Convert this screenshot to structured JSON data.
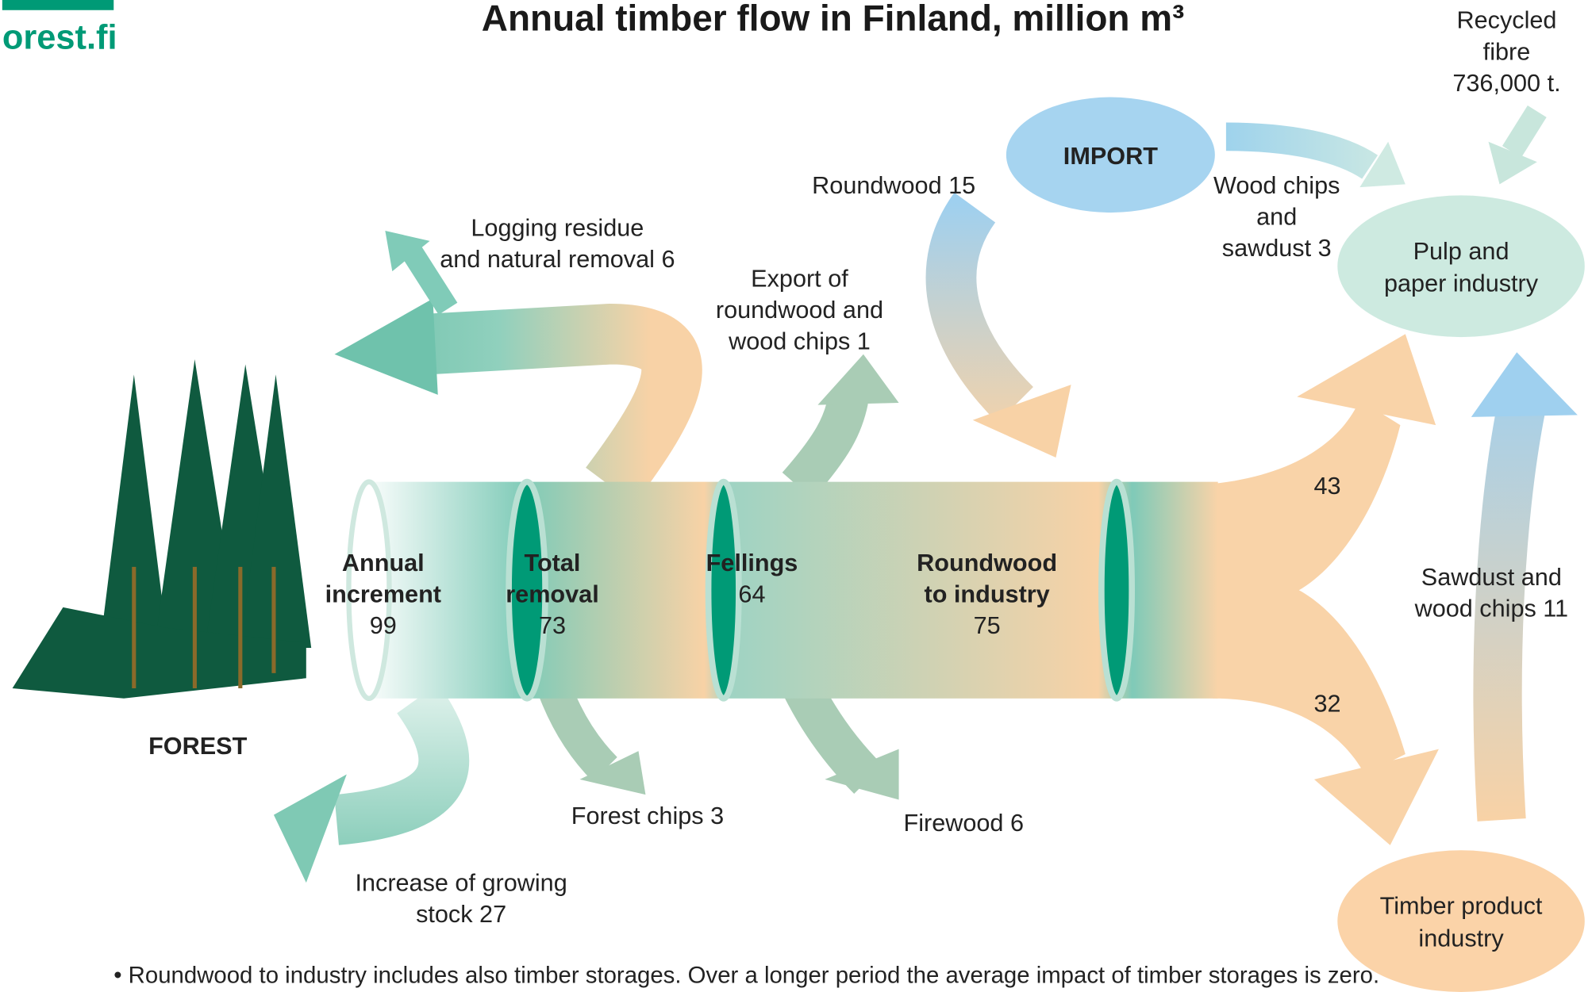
{
  "logo": "orest.fi",
  "title": "Annual timber flow in Finland, million m³",
  "stages": [
    {
      "name": [
        "Annual",
        "increment"
      ],
      "value": 99
    },
    {
      "name": [
        "Total",
        "removal"
      ],
      "value": 73
    },
    {
      "name": [
        "Fellings"
      ],
      "value": 64
    },
    {
      "name": [
        "Roundwood",
        "to industry"
      ],
      "value": 75
    }
  ],
  "nodes": {
    "forest": "FOREST",
    "import": "IMPORT",
    "pulp": [
      "Pulp and",
      "paper industry"
    ],
    "timber": [
      "Timber product",
      "industry"
    ]
  },
  "flows": {
    "logging": [
      "Logging residue",
      "and natural removal 6"
    ],
    "export": [
      "Export of",
      "roundwood and",
      "wood chips 1"
    ],
    "roundwood_import": [
      "Roundwood 15"
    ],
    "chips_import": [
      "Wood chips",
      "and",
      "sawdust 3"
    ],
    "recycled": [
      "Recycled",
      "fibre",
      "736,000 t."
    ],
    "forest_chips": [
      "Forest chips 3"
    ],
    "firewood": [
      "Firewood 6"
    ],
    "increase": [
      "Increase of growing",
      "stock 27"
    ],
    "sawdust": [
      "Sawdust and",
      "wood chips 11"
    ],
    "to_pulp": 43,
    "to_timber": 32
  },
  "footnote": "• Roundwood to industry includes also timber storages. Over a longer period the average impact of timber storages is zero."
}
